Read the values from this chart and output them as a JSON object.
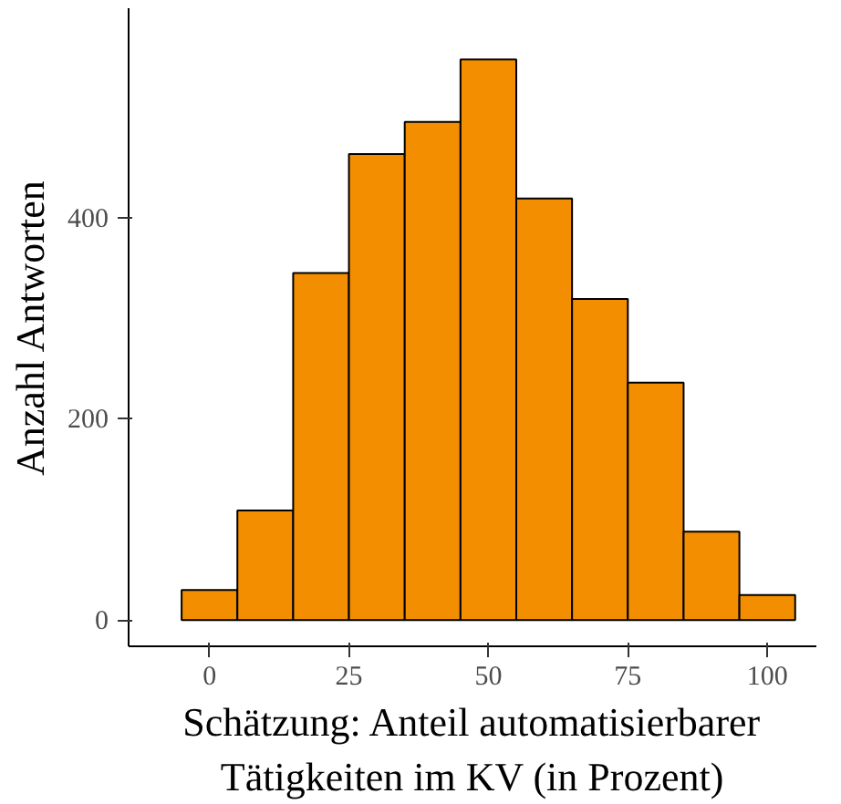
{
  "chart_data": {
    "type": "histogram",
    "xlabel": "Schätzung: Anteil automatisierbarer\nTätigkeiten im KV (in Prozent)",
    "ylabel": "Anzahl Antworten",
    "bins": [
      -5,
      5,
      15,
      25,
      35,
      45,
      55,
      65,
      75,
      85,
      95,
      105
    ],
    "values": [
      30,
      109,
      345,
      463,
      495,
      557,
      419,
      319,
      236,
      88,
      25
    ],
    "color": "#f28e00",
    "xlim": [
      -14.5,
      108.8
    ],
    "ylim": [
      -26,
      608
    ],
    "xticks": [
      0,
      25,
      50,
      75,
      100
    ],
    "yticks": [
      0,
      200,
      400
    ],
    "grid": false
  }
}
